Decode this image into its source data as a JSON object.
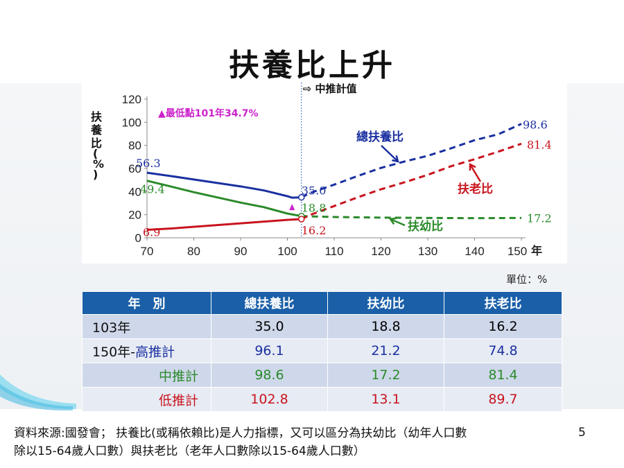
{
  "title": "扶養比上升",
  "unit_label": "單位：%",
  "footnote": {
    "line1": "資料來源:國發會； 扶養比(或稱依賴比)是人力指標，又可以區分為扶幼比（幼年人口數",
    "line2": "除以15-64歲人口數）與扶老比（老年人口數除以15-64歲人口數）"
  },
  "page_number": "5",
  "colors": {
    "total": "#1a2fa0",
    "child": "#2a8a2a",
    "elderly": "#c8141e",
    "minimum_marker": "#cc22cc",
    "table_header": "#1a5fa8"
  },
  "chart_data": {
    "type": "line",
    "ylabel": "扶養比(%)",
    "xunit": "年",
    "xlim": [
      70,
      150
    ],
    "ylim": [
      0,
      120
    ],
    "xticks": [
      "70",
      "80",
      "90",
      "100",
      "110",
      "120",
      "130",
      "140",
      "150"
    ],
    "yticks": [
      "0",
      "20",
      "40",
      "60",
      "80",
      "100",
      "120"
    ],
    "projection_start_x": 103,
    "projection_label": "⇨ 中推計值",
    "minimum_annotation": "▲最低點101年34.7%",
    "minimum_point": {
      "x": 101,
      "y": 34.7
    },
    "series": [
      {
        "key": "total",
        "name": "總扶養比",
        "x": [
          70,
          75,
          80,
          85,
          90,
          95,
          100,
          101,
          103,
          105,
          110,
          115,
          120,
          125,
          130,
          135,
          140,
          145,
          150
        ],
        "y": [
          56.3,
          53.5,
          50.5,
          47.5,
          44.5,
          41.0,
          36.0,
          34.7,
          35.0,
          39.0,
          46.0,
          53.5,
          60.5,
          66.0,
          71.0,
          77.5,
          84.5,
          89.5,
          98.6
        ]
      },
      {
        "key": "child",
        "name": "扶幼比",
        "x": [
          70,
          75,
          80,
          85,
          90,
          95,
          100,
          103,
          110,
          120,
          130,
          140,
          150
        ],
        "y": [
          49.4,
          44.5,
          39.5,
          35.0,
          30.5,
          26.5,
          21.0,
          18.8,
          18.0,
          17.5,
          17.2,
          17.0,
          17.2
        ]
      },
      {
        "key": "elderly",
        "name": "扶老比",
        "x": [
          70,
          75,
          80,
          85,
          90,
          95,
          100,
          103,
          105,
          110,
          115,
          120,
          125,
          130,
          135,
          140,
          145,
          150
        ],
        "y": [
          6.9,
          8.0,
          9.5,
          11.0,
          12.5,
          14.0,
          15.5,
          16.2,
          20.0,
          27.5,
          35.0,
          42.0,
          48.0,
          54.5,
          62.0,
          68.0,
          74.5,
          81.4
        ]
      }
    ],
    "value_labels": [
      {
        "series": "total",
        "text": "56.3",
        "x": 70,
        "y": 56.3
      },
      {
        "series": "child",
        "text": "49.4",
        "x": 70,
        "y": 49.4
      },
      {
        "series": "elderly",
        "text": "6.9",
        "x": 70,
        "y": 6.9
      },
      {
        "series": "total",
        "text": "35.0",
        "x": 103,
        "y": 35.0
      },
      {
        "series": "child",
        "text": "18.8",
        "x": 103,
        "y": 18.8
      },
      {
        "series": "elderly",
        "text": "16.2",
        "x": 103,
        "y": 16.2
      },
      {
        "series": "total",
        "text": "98.6",
        "x": 150,
        "y": 98.6
      },
      {
        "series": "elderly",
        "text": "81.4",
        "x": 150,
        "y": 81.4
      },
      {
        "series": "child",
        "text": "17.2",
        "x": 150,
        "y": 17.2
      }
    ],
    "series_callouts": [
      {
        "series": "total",
        "text": "總扶養比"
      },
      {
        "series": "elderly",
        "text": "扶老比"
      },
      {
        "series": "child",
        "text": "扶幼比"
      }
    ]
  },
  "table": {
    "headers": [
      "年　別",
      "總扶養比",
      "扶幼比",
      "扶老比"
    ],
    "rows": [
      {
        "label": "103年",
        "label_prefix": "",
        "values": [
          "35.0",
          "18.8",
          "16.2"
        ]
      },
      {
        "label_prefix": "150年-",
        "label": "高推計",
        "values": [
          "96.1",
          "21.2",
          "74.8"
        ]
      },
      {
        "label_prefix": "",
        "label": "中推計",
        "values": [
          "98.6",
          "17.2",
          "81.4"
        ]
      },
      {
        "label_prefix": "",
        "label": "低推計",
        "values": [
          "102.8",
          "13.1",
          "89.7"
        ]
      }
    ]
  }
}
